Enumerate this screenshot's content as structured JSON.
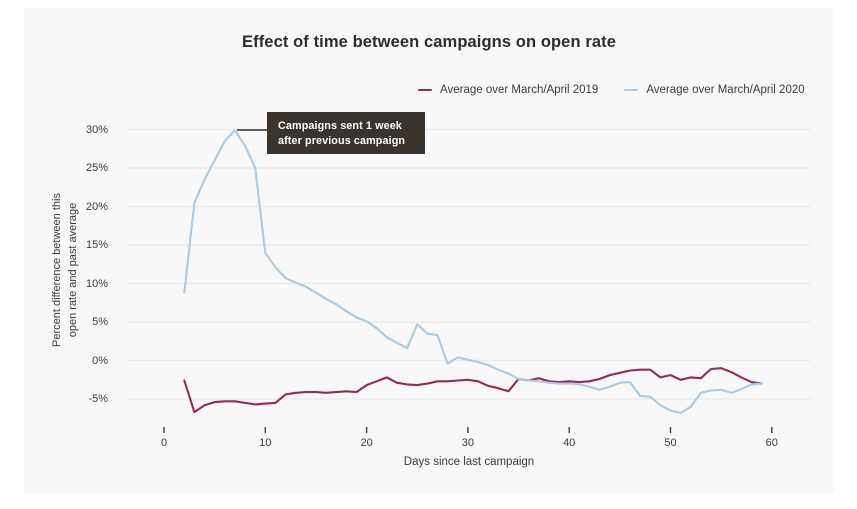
{
  "page": {
    "background": "#ffffff",
    "card_background": "#f8f8f9",
    "gridline_color": "#ebebec"
  },
  "chart": {
    "title": "Effect of time between campaigns on open rate",
    "x_axis": {
      "label": "Days since last campaign",
      "tick_labels": [
        "0",
        "10",
        "20",
        "30",
        "40",
        "50",
        "60"
      ]
    },
    "y_axis": {
      "label_line1": "Percent difference between this",
      "label_line2": "open rate and past average",
      "tick_labels": [
        "30%",
        "25%",
        "20%",
        "15%",
        "10%",
        "5%",
        "0%",
        "-5%"
      ]
    },
    "legend": [
      {
        "label": "Average over March/April 2019",
        "color": "#932b59"
      },
      {
        "label": "Average over March/April 2020",
        "color": "#a7cce4"
      }
    ],
    "annotation": {
      "line1": "Campaigns sent 1 week",
      "line2": "after previous campaign",
      "background": "#3b332d",
      "text_color": "#ffffff",
      "connector_color": "#2e2924"
    }
  },
  "chart_data": {
    "type": "line",
    "title": "Effect of time between campaigns on open rate",
    "xlabel": "Days since last campaign",
    "ylabel": "Percent difference between this open rate and past average",
    "xlim": [
      0,
      60
    ],
    "ylim": [
      -7.5,
      31
    ],
    "x_ticks": [
      0,
      10,
      20,
      30,
      40,
      50,
      60
    ],
    "y_ticks": [
      30,
      25,
      20,
      15,
      10,
      5,
      0,
      -5
    ],
    "y_tick_format": "percent",
    "grid": "horizontal",
    "legend_position": "top-right",
    "x": [
      2,
      3,
      4,
      5,
      6,
      7,
      8,
      9,
      10,
      11,
      12,
      13,
      14,
      15,
      16,
      17,
      18,
      19,
      20,
      21,
      22,
      23,
      24,
      25,
      26,
      27,
      28,
      29,
      30,
      31,
      32,
      33,
      34,
      35,
      36,
      37,
      38,
      39,
      40,
      41,
      42,
      43,
      44,
      45,
      46,
      47,
      48,
      49,
      50,
      51,
      52,
      53,
      54,
      55,
      56,
      57,
      58,
      59
    ],
    "series": [
      {
        "name": "Average over March/April 2019",
        "color": "#932b59",
        "values": [
          -2.6,
          -6.7,
          -5.8,
          -5.4,
          -5.3,
          -5.3,
          -5.5,
          -5.7,
          -5.6,
          -5.5,
          -4.4,
          -4.2,
          -4.1,
          -4.1,
          -4.2,
          -4.1,
          -4.0,
          -4.1,
          -3.2,
          -2.7,
          -2.2,
          -2.9,
          -3.1,
          -3.2,
          -3.0,
          -2.7,
          -2.7,
          -2.6,
          -2.5,
          -2.7,
          -3.3,
          -3.6,
          -4.0,
          -2.4,
          -2.6,
          -2.3,
          -2.7,
          -2.8,
          -2.7,
          -2.8,
          -2.7,
          -2.4,
          -1.9,
          -1.6,
          -1.3,
          -1.2,
          -1.2,
          -2.2,
          -1.9,
          -2.5,
          -2.2,
          -2.3,
          -1.1,
          -1.0,
          -1.5,
          -2.2,
          -2.8,
          -3.0
        ]
      },
      {
        "name": "Average over March/April 2020",
        "color": "#a7cce4",
        "values": [
          8.8,
          20.5,
          23.5,
          26.0,
          28.5,
          29.9,
          27.9,
          25.0,
          14.0,
          12.1,
          10.7,
          10.1,
          9.6,
          8.8,
          8.0,
          7.3,
          6.4,
          5.6,
          5.1,
          4.2,
          3.0,
          2.3,
          1.6,
          4.7,
          3.5,
          3.3,
          -0.4,
          0.4,
          0.1,
          -0.2,
          -0.6,
          -1.2,
          -1.7,
          -2.4,
          -2.6,
          -2.7,
          -2.9,
          -3.0,
          -3.0,
          -3.1,
          -3.4,
          -3.8,
          -3.4,
          -2.9,
          -2.8,
          -4.6,
          -4.7,
          -5.8,
          -6.5,
          -6.8,
          -6.0,
          -4.2,
          -3.9,
          -3.8,
          -4.2,
          -3.7,
          -3.1,
          -3.0
        ]
      }
    ],
    "annotation": {
      "text": "Campaigns sent 1 week after previous campaign",
      "points_to": {
        "x": 7,
        "y": 29.9
      }
    }
  }
}
